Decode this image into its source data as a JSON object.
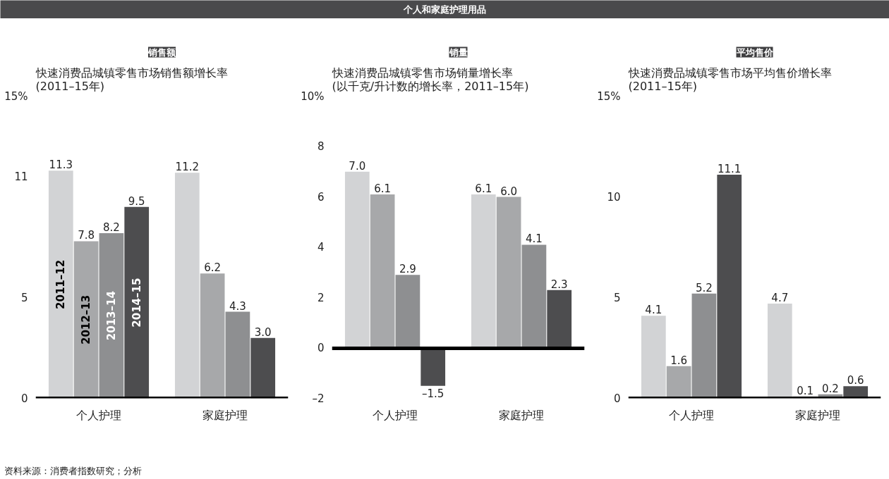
{
  "chart_data": [
    {
      "type": "bar",
      "title": "销售额",
      "subtitle": "快速消费品城镇零售市场销售额增长率\n(2011–15年)",
      "categories": [
        "个人护理",
        "家庭护理"
      ],
      "series": [
        {
          "name": "2011–12",
          "color": "#d2d3d5",
          "values": [
            11.3,
            11.2
          ],
          "value_labels": [
            "11.3",
            "11.2"
          ]
        },
        {
          "name": "2012–13",
          "color": "#a7a8aa",
          "values": [
            7.8,
            6.2
          ],
          "value_labels": [
            "7.8",
            "6.2"
          ]
        },
        {
          "name": "2013–14",
          "color": "#8e8f91",
          "values": [
            8.2,
            4.3
          ],
          "value_labels": [
            "8.2",
            "4.3"
          ]
        },
        {
          "name": "2014–15",
          "color": "#4d4d4f",
          "values": [
            9.5,
            3.0
          ],
          "value_labels": [
            "9.5",
            "3.0"
          ]
        }
      ],
      "ylim": [
        0,
        15
      ],
      "yticks": [
        0,
        5,
        11,
        {
          "value": 15,
          "label": "15%"
        }
      ],
      "annotations": [
        "个人和家庭护理用品",
        "资料来源：消费者指数研究；分析"
      ]
    },
    {
      "type": "bar",
      "title": "销量",
      "subtitle": "快速消费品城镇零售市场销量增长率\n(以千克/升计数的增长率，2011–15年)",
      "categories": [
        "个人护理",
        "家庭护理"
      ],
      "series": [
        {
          "color": "#d2d3d5",
          "values": [
            7.0,
            6.1
          ],
          "value_labels": [
            "7.0",
            "6.1"
          ]
        },
        {
          "color": "#a7a8aa",
          "values": [
            6.1,
            6.0
          ],
          "value_labels": [
            "6.1",
            "6.0"
          ]
        },
        {
          "color": "#8e8f91",
          "values": [
            2.9,
            4.1
          ],
          "value_labels": [
            "2.9",
            "4.1"
          ]
        },
        {
          "color": "#4d4d4f",
          "values": [
            -1.5,
            2.3
          ],
          "value_labels": [
            "–1.5",
            "2.3"
          ]
        }
      ],
      "ylim": [
        -2,
        10
      ],
      "yticks": [
        {
          "value": -2,
          "label": "–2"
        },
        0,
        2,
        4,
        6,
        8,
        {
          "value": 10,
          "label": "10%"
        }
      ]
    },
    {
      "type": "bar",
      "title": "平均售价",
      "subtitle": "快速消费品城镇零售市场平均售价增长率\n(2011–15年)",
      "categories": [
        "个人护理",
        "家庭护理"
      ],
      "series": [
        {
          "color": "#d2d3d5",
          "values": [
            4.1,
            4.7
          ],
          "value_labels": [
            "4.1",
            "4.7"
          ]
        },
        {
          "color": "#a7a8aa",
          "values": [
            1.6,
            0.1
          ],
          "value_labels": [
            "1.6",
            "0.1"
          ]
        },
        {
          "color": "#8e8f91",
          "values": [
            5.2,
            0.2
          ],
          "value_labels": [
            "5.2",
            "0.2"
          ]
        },
        {
          "color": "#4d4d4f",
          "values": [
            11.1,
            0.6
          ],
          "value_labels": [
            "11.1",
            "0.6"
          ]
        }
      ],
      "ylim": [
        0,
        15
      ],
      "yticks": [
        0,
        5,
        10,
        {
          "value": 15,
          "label": "15%"
        }
      ]
    }
  ]
}
